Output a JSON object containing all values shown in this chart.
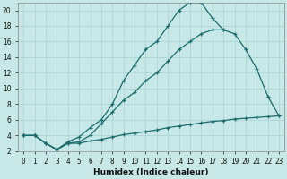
{
  "title": "",
  "xlabel": "Humidex (Indice chaleur)",
  "background_color": "#c8e8e8",
  "grid_color": "#b0d8d8",
  "line_color": "#1a6b6b",
  "xlim": [
    -0.5,
    23.5
  ],
  "ylim": [
    2,
    21
  ],
  "yticks": [
    2,
    4,
    6,
    8,
    10,
    12,
    14,
    16,
    18,
    20
  ],
  "xticks": [
    0,
    1,
    2,
    3,
    4,
    5,
    6,
    7,
    8,
    9,
    10,
    11,
    12,
    13,
    14,
    15,
    16,
    17,
    18,
    19,
    20,
    21,
    22,
    23
  ],
  "series": [
    {
      "x": [
        0,
        1,
        2,
        3,
        4,
        5,
        6,
        7,
        8,
        9,
        10,
        11,
        12,
        13,
        14,
        15,
        16,
        17,
        18
      ],
      "y": [
        4,
        4,
        3,
        2.2,
        3.2,
        3.8,
        5,
        6,
        8,
        11,
        13,
        15,
        16,
        18,
        20,
        21,
        21,
        19,
        17.5
      ]
    },
    {
      "x": [
        0,
        1,
        2,
        3,
        4,
        5,
        6,
        7,
        8,
        9,
        10,
        11,
        12,
        13,
        14,
        15,
        16,
        17,
        18,
        19,
        20,
        21,
        22,
        23
      ],
      "y": [
        4,
        4,
        3,
        2.2,
        3,
        3.2,
        4,
        5.5,
        7,
        8.5,
        9.5,
        11,
        12,
        13.5,
        15,
        16,
        17,
        17.5,
        17.5,
        17,
        15,
        12.5,
        9,
        6.5
      ]
    },
    {
      "x": [
        0,
        1,
        2,
        3,
        4,
        5,
        6,
        7,
        8,
        9,
        10,
        11,
        12,
        13,
        14,
        15,
        16,
        17,
        18,
        19,
        20,
        21,
        22,
        23
      ],
      "y": [
        4,
        4,
        3,
        2.2,
        3,
        3,
        3.3,
        3.5,
        3.8,
        4.1,
        4.3,
        4.5,
        4.7,
        5.0,
        5.2,
        5.4,
        5.6,
        5.8,
        5.9,
        6.1,
        6.2,
        6.3,
        6.4,
        6.5
      ]
    }
  ]
}
